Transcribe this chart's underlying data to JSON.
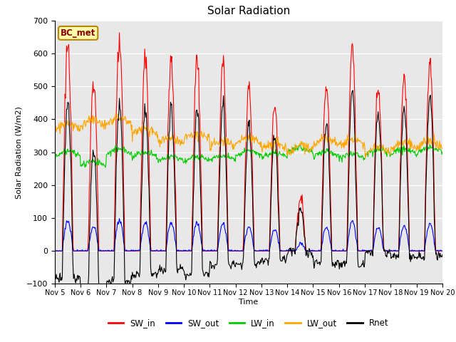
{
  "title": "Solar Radiation",
  "ylabel": "Solar Radiation (W/m2)",
  "xlabel": "Time",
  "ylim": [
    -100,
    700
  ],
  "yticks": [
    -100,
    0,
    100,
    200,
    300,
    400,
    500,
    600,
    700
  ],
  "n_days": 15,
  "colors": {
    "SW_in": "#ff0000",
    "SW_out": "#0000ff",
    "LW_in": "#00cc00",
    "LW_out": "#ffa500",
    "Rnet": "#000000"
  },
  "line_width": 0.8,
  "station_label": "BC_met",
  "bg_color": "#e8e8e8",
  "fig_bg": "#ffffff",
  "tick_labels": [
    "Nov 5",
    "Nov 6",
    "Nov 7",
    "Nov 8",
    "Nov 9",
    "Nov 10",
    "Nov 11",
    "Nov 12",
    "Nov 13",
    "Nov 14",
    "Nov 15",
    "Nov 16",
    "Nov 17",
    "Nov 18",
    "Nov 19",
    "Nov 20"
  ]
}
